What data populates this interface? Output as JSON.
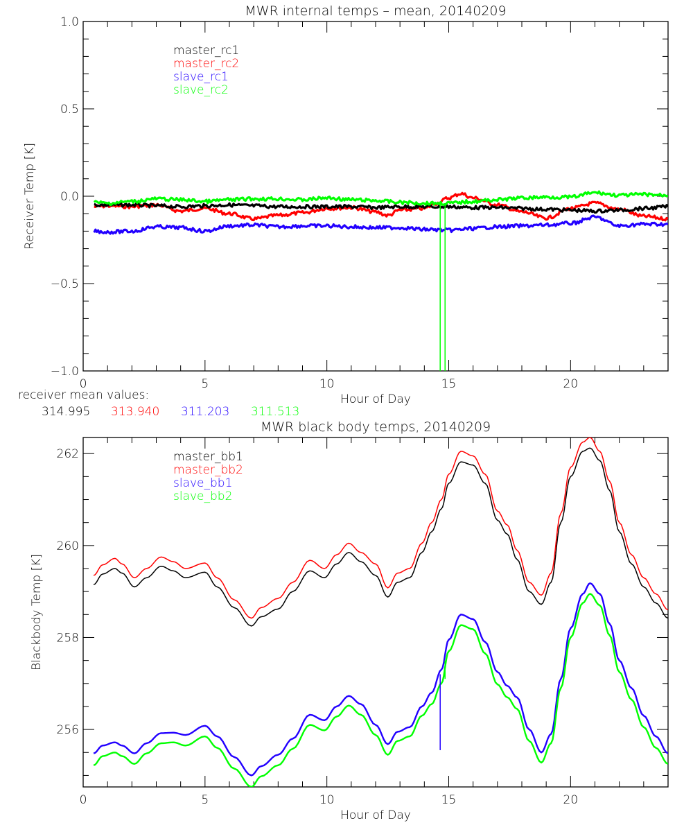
{
  "chart_data": [
    {
      "type": "line",
      "title": "MWR internal temps – mean, 20140209",
      "xlabel": "Hour of Day",
      "ylabel": "Receiver Temp [K]",
      "xlim": [
        0,
        24
      ],
      "ylim": [
        -1.0,
        1.0
      ],
      "xticks": [
        0,
        5,
        10,
        15,
        20
      ],
      "xtick_labels": [
        "0",
        "5",
        "10",
        "15",
        "20"
      ],
      "x_minor_step": 1,
      "yticks": [
        1.0,
        0.5,
        0.0,
        -0.5,
        -1.0
      ],
      "ytick_labels": [
        "1.0",
        "0.5",
        "0.0",
        "−0.5",
        "−1.0"
      ],
      "y_minor_step": 0.1,
      "grid": false,
      "legend_position": "top-left",
      "series": [
        {
          "name": "master_rc1",
          "color": "#000000",
          "x": [
            0.45,
            1,
            2,
            3,
            4,
            5,
            6,
            7,
            8,
            9,
            10,
            11,
            12,
            13,
            14,
            15,
            16,
            17,
            18,
            19,
            20,
            21,
            22,
            23,
            24
          ],
          "y": [
            -0.05,
            -0.05,
            -0.05,
            -0.055,
            -0.06,
            -0.055,
            -0.05,
            -0.055,
            -0.06,
            -0.06,
            -0.06,
            -0.06,
            -0.065,
            -0.06,
            -0.06,
            -0.06,
            -0.065,
            -0.065,
            -0.07,
            -0.075,
            -0.08,
            -0.085,
            -0.08,
            -0.07,
            -0.06
          ]
        },
        {
          "name": "master_rc2",
          "color": "#ff0000",
          "x": [
            0.45,
            1,
            2,
            2.5,
            3,
            4,
            5,
            6,
            7,
            8,
            9,
            10,
            11,
            12,
            12.5,
            13,
            14,
            14.5,
            15,
            15.5,
            16,
            17,
            18,
            19,
            20,
            21,
            22,
            23,
            24
          ],
          "y": [
            -0.06,
            -0.055,
            -0.06,
            -0.055,
            -0.05,
            -0.085,
            -0.07,
            -0.1,
            -0.13,
            -0.11,
            -0.095,
            -0.07,
            -0.065,
            -0.09,
            -0.11,
            -0.08,
            -0.07,
            -0.04,
            -0.01,
            0.015,
            -0.01,
            -0.05,
            -0.09,
            -0.125,
            -0.07,
            -0.04,
            -0.075,
            -0.115,
            -0.13
          ]
        },
        {
          "name": "slave_rc1",
          "color": "#2200ff",
          "x": [
            0.45,
            1,
            2,
            3,
            4,
            5,
            6,
            7,
            8,
            9,
            10,
            11,
            12,
            13,
            14,
            15,
            16,
            17,
            18,
            19,
            20,
            21,
            22,
            23,
            24
          ],
          "y": [
            -0.2,
            -0.205,
            -0.2,
            -0.175,
            -0.18,
            -0.2,
            -0.17,
            -0.165,
            -0.175,
            -0.17,
            -0.17,
            -0.175,
            -0.18,
            -0.18,
            -0.19,
            -0.195,
            -0.185,
            -0.175,
            -0.17,
            -0.165,
            -0.155,
            -0.12,
            -0.17,
            -0.16,
            -0.16
          ]
        },
        {
          "name": "slave_rc2",
          "color": "#00ff00",
          "x": [
            0.45,
            1,
            2,
            3,
            4,
            5,
            6,
            7,
            8,
            9,
            10,
            11,
            12,
            13,
            14,
            15,
            16,
            17,
            18,
            19,
            20,
            21,
            22,
            23,
            24
          ],
          "y": [
            -0.035,
            -0.04,
            -0.03,
            -0.015,
            -0.02,
            -0.03,
            -0.02,
            -0.015,
            -0.015,
            -0.02,
            -0.01,
            -0.02,
            -0.025,
            -0.035,
            -0.04,
            -0.04,
            -0.03,
            -0.02,
            -0.01,
            -0.005,
            -0.005,
            0.02,
            0.005,
            0.01,
            0.005
          ]
        }
      ],
      "spikes": [
        {
          "series": "slave_rc2",
          "x": 14.65,
          "to_y": -1.0
        },
        {
          "series": "slave_rc2",
          "x": 14.85,
          "to_y": -1.0
        }
      ],
      "annotation_label": "receiver mean values:",
      "mean_values": [
        {
          "series": "master_rc1",
          "value": "314.995"
        },
        {
          "series": "master_rc2",
          "value": "313.940"
        },
        {
          "series": "slave_rc1",
          "value": "311.203"
        },
        {
          "series": "slave_rc2",
          "value": "311.513"
        }
      ]
    },
    {
      "type": "line",
      "title": "MWR black body temps, 20140209",
      "xlabel": "Hour of Day",
      "ylabel": "Blackbody Temp [K]",
      "xlim": [
        0,
        24
      ],
      "ylim": [
        254.75,
        262.35
      ],
      "xticks": [
        0,
        5,
        10,
        15,
        20
      ],
      "xtick_labels": [
        "0",
        "5",
        "10",
        "15",
        "20"
      ],
      "x_minor_step": 1,
      "yticks": [
        256,
        258,
        260,
        262
      ],
      "ytick_labels": [
        "256",
        "258",
        "260",
        "262"
      ],
      "y_minor_step": 0.5,
      "grid": false,
      "legend_position": "top-left",
      "series": [
        {
          "name": "master_bb1",
          "color": "#000000",
          "x": [
            0.43,
            0.8,
            1.3,
            1.6,
            2.1,
            2.6,
            3.2,
            3.7,
            4.2,
            5.0,
            5.5,
            6.2,
            6.9,
            7.3,
            8.0,
            8.6,
            9.3,
            9.9,
            10.4,
            10.9,
            11.4,
            12.0,
            12.5,
            12.9,
            13.4,
            13.9,
            14.3,
            14.7,
            15.0,
            15.5,
            16.0,
            16.5,
            17.0,
            17.4,
            17.8,
            18.3,
            18.8,
            19.2,
            19.6,
            20.0,
            20.5,
            20.8,
            21.2,
            21.6,
            22.0,
            22.5,
            23.0,
            23.5,
            24.0
          ],
          "y": [
            259.15,
            259.38,
            259.5,
            259.4,
            259.1,
            259.3,
            259.55,
            259.45,
            259.3,
            259.42,
            259.1,
            258.65,
            258.25,
            258.45,
            258.62,
            259.0,
            259.45,
            259.3,
            259.6,
            259.85,
            259.65,
            259.35,
            258.88,
            259.2,
            259.3,
            259.85,
            260.3,
            260.8,
            261.35,
            261.82,
            261.75,
            261.35,
            260.55,
            260.25,
            259.7,
            259.0,
            258.72,
            259.2,
            260.5,
            261.5,
            262.05,
            262.12,
            261.85,
            261.2,
            260.3,
            259.6,
            259.1,
            258.75,
            258.42
          ]
        },
        {
          "name": "master_bb2",
          "color": "#ff0000",
          "x": [
            0.43,
            0.8,
            1.3,
            1.6,
            2.1,
            2.6,
            3.2,
            3.7,
            4.2,
            5.0,
            5.5,
            6.2,
            6.9,
            7.3,
            8.0,
            8.6,
            9.3,
            9.9,
            10.4,
            10.9,
            11.4,
            12.0,
            12.5,
            12.9,
            13.4,
            13.9,
            14.3,
            14.7,
            15.0,
            15.5,
            16.0,
            16.5,
            17.0,
            17.4,
            17.8,
            18.3,
            18.8,
            19.2,
            19.6,
            20.0,
            20.5,
            20.8,
            21.2,
            21.6,
            22.0,
            22.5,
            23.0,
            23.5,
            24.0
          ],
          "y": [
            259.35,
            259.58,
            259.72,
            259.6,
            259.3,
            259.5,
            259.75,
            259.65,
            259.5,
            259.62,
            259.3,
            258.82,
            258.42,
            258.65,
            258.85,
            259.2,
            259.68,
            259.5,
            259.8,
            260.05,
            259.85,
            259.6,
            259.08,
            259.4,
            259.5,
            260.05,
            260.5,
            261.0,
            261.55,
            262.05,
            261.95,
            261.55,
            260.75,
            260.45,
            259.9,
            259.2,
            258.92,
            259.4,
            260.7,
            261.7,
            262.25,
            262.35,
            262.05,
            261.4,
            260.5,
            259.8,
            259.3,
            258.95,
            258.6
          ]
        },
        {
          "name": "slave_bb1",
          "color": "#2200ff",
          "x": [
            0.43,
            0.8,
            1.3,
            1.6,
            2.1,
            2.6,
            3.2,
            3.7,
            4.2,
            5.0,
            5.5,
            6.2,
            6.9,
            7.3,
            8.0,
            8.6,
            9.3,
            9.9,
            10.4,
            10.9,
            11.4,
            12.0,
            12.5,
            12.9,
            13.4,
            13.9,
            14.3,
            14.7,
            15.0,
            15.5,
            16.0,
            16.5,
            17.0,
            17.4,
            17.8,
            18.3,
            18.8,
            19.2,
            19.6,
            20.0,
            20.5,
            20.8,
            21.2,
            21.6,
            22.0,
            22.5,
            23.0,
            23.5,
            24.0
          ],
          "y": [
            255.48,
            255.65,
            255.72,
            255.65,
            255.48,
            255.7,
            255.92,
            255.93,
            255.88,
            256.08,
            255.85,
            255.4,
            255.0,
            255.2,
            255.45,
            255.8,
            256.32,
            256.2,
            256.5,
            256.73,
            256.55,
            256.1,
            255.68,
            255.95,
            256.05,
            256.5,
            256.8,
            257.3,
            257.95,
            258.5,
            258.4,
            257.9,
            257.25,
            256.95,
            256.7,
            256.0,
            255.5,
            255.9,
            257.1,
            258.2,
            258.95,
            259.18,
            258.95,
            258.3,
            257.5,
            256.9,
            256.3,
            255.85,
            255.48
          ]
        },
        {
          "name": "slave_bb2",
          "color": "#00ff00",
          "x": [
            0.43,
            0.8,
            1.3,
            1.6,
            2.1,
            2.6,
            3.2,
            3.7,
            4.2,
            5.0,
            5.5,
            6.2,
            6.9,
            7.3,
            8.0,
            8.6,
            9.3,
            9.9,
            10.4,
            10.9,
            11.4,
            12.0,
            12.5,
            12.9,
            13.4,
            13.9,
            14.3,
            14.7,
            15.0,
            15.5,
            16.0,
            16.5,
            17.0,
            17.4,
            17.8,
            18.3,
            18.8,
            19.2,
            19.6,
            20.0,
            20.5,
            20.8,
            21.2,
            21.6,
            22.0,
            22.5,
            23.0,
            23.5,
            24.0
          ],
          "y": [
            255.22,
            255.42,
            255.5,
            255.42,
            255.25,
            255.48,
            255.7,
            255.72,
            255.65,
            255.85,
            255.6,
            255.15,
            254.75,
            254.98,
            255.22,
            255.58,
            256.1,
            255.98,
            256.28,
            256.52,
            256.32,
            255.88,
            255.45,
            255.75,
            255.85,
            256.3,
            256.55,
            257.0,
            257.7,
            258.27,
            258.18,
            257.65,
            256.98,
            256.7,
            256.45,
            255.75,
            255.28,
            255.7,
            256.9,
            258.0,
            258.75,
            258.95,
            258.7,
            258.05,
            257.25,
            256.65,
            256.05,
            255.6,
            255.25
          ]
        }
      ],
      "spikes": [
        {
          "series": "slave_bb1",
          "x": 14.65,
          "y_from": 257.2,
          "y_to": 255.55
        },
        {
          "series": "slave_bb2",
          "x": 14.85,
          "y_from": 257.5,
          "y_to": 257.1
        }
      ]
    }
  ]
}
